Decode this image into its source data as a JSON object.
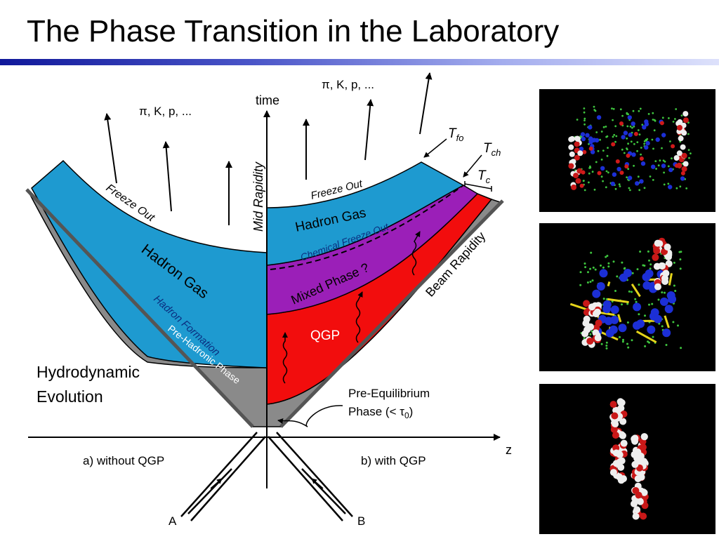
{
  "slide": {
    "title": "The Phase Transition in the Laboratory"
  },
  "diagram": {
    "time_label": "time",
    "z_label": "z",
    "mid_rapidity": "Mid Rapidity",
    "beam_rapidity": "Beam Rapidity",
    "particles_left": "π, K, p, ...",
    "particles_right": "π, K, p, ...",
    "left": {
      "freeze_out": "Freeze Out",
      "hadron_gas": "Hadron Gas",
      "hadron_formation": "Hadron Formation",
      "pre_hadronic": "Pre-Hadronic Phase",
      "hydro_line1": "Hydrodynamic",
      "hydro_line2": "Evolution",
      "caption": "a) without QGP",
      "nucleus": "A"
    },
    "right": {
      "freeze_out": "Freeze Out",
      "hadron_gas": "Hadron Gas",
      "chemical_freeze_out": "Chemical Freeze Out",
      "mixed_phase": "Mixed Phase ?",
      "qgp": "QGP",
      "t_fo": "T",
      "t_fo_sub": "fo",
      "t_ch": "T",
      "t_ch_sub": "ch",
      "t_c": "T",
      "t_c_sub": "c",
      "pre_eq_line1": "Pre-Equilibrium",
      "pre_eq_line2": "Phase (< τ",
      "pre_eq_sub": "0",
      "pre_eq_end": ")",
      "caption": "b) with QGP",
      "nucleus": "B"
    },
    "colors": {
      "hadron_gas": "#1e9ad0",
      "mixed_phase": "#9b1fb8",
      "qgp": "#f20d0d",
      "pre_phase": "#8a8a8a"
    }
  },
  "simulation_panels": [
    {
      "label": "late-stage-hadron-gas"
    },
    {
      "label": "collision-in-progress"
    },
    {
      "label": "incoming-nuclei"
    }
  ]
}
